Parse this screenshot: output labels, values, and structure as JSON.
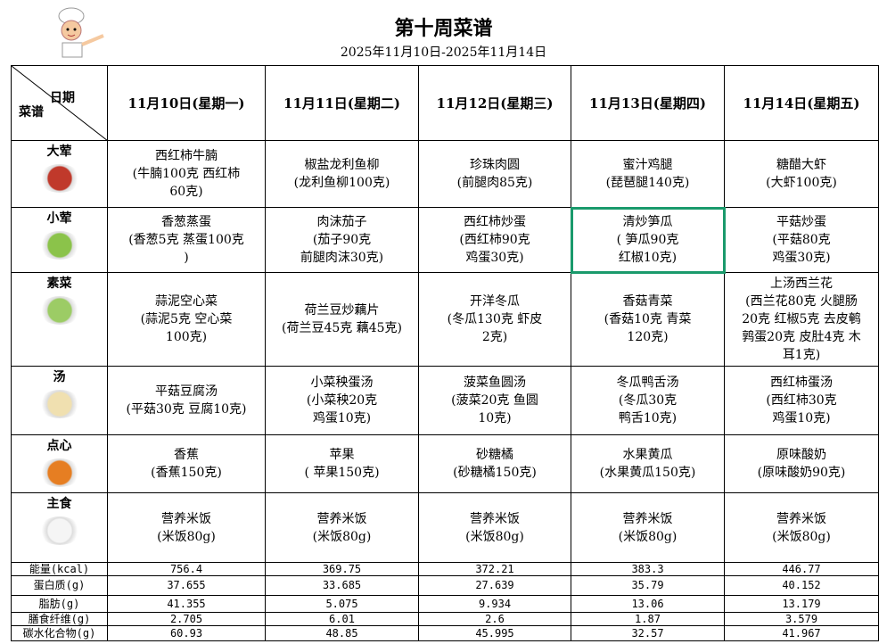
{
  "title": "第十周菜谱",
  "subtitle": "2025年11月10日-2025年11月14日",
  "header": {
    "date_label": "日期",
    "menu_label": "菜谱",
    "days": [
      "11月10日(星期一)",
      "11月11日(星期二)",
      "11月12日(星期三)",
      "11月13日(星期四)",
      "11月14日(星期五)"
    ]
  },
  "rows": [
    {
      "category": "大荤",
      "icon": "braised-beef-icon",
      "cells": [
        "西红柿牛腩\n(牛腩100克 西红柿\n60克)",
        "椒盐龙利鱼柳\n(龙利鱼柳100克)",
        "珍珠肉圆\n(前腿肉85克)",
        "蜜汁鸡腿\n(琵琶腿140克)",
        "糖醋大虾\n(大虾100克)"
      ]
    },
    {
      "category": "小荤",
      "icon": "stir-fry-icon",
      "cells": [
        "香葱蒸蛋\n(香葱5克 蒸蛋100克\n)",
        "肉沫茄子\n(茄子90克\n前腿肉沫30克)",
        "西红柿炒蛋\n(西红柿90克\n鸡蛋30克)",
        "清炒笋瓜\n( 笋瓜90克\n红椒10克)",
        "平菇炒蛋\n(平菇80克\n鸡蛋30克)"
      ]
    },
    {
      "category": "素菜",
      "icon": "asparagus-icon",
      "cells": [
        "蒜泥空心菜\n(蒜泥5克 空心菜\n100克)",
        "荷兰豆炒藕片\n(荷兰豆45克 藕45克)",
        "开洋冬瓜\n(冬瓜130克 虾皮\n2克)",
        "香菇青菜\n(香菇10克 青菜\n120克)",
        "上汤西兰花\n(西兰花80克 火腿肠\n20克 红椒5克 去皮鹌\n鹑蛋20克 皮肚4克 木\n耳1克)"
      ]
    },
    {
      "category": "汤",
      "icon": "soup-icon",
      "cells": [
        "平菇豆腐汤\n(平菇30克 豆腐10克)",
        "小菜秧蛋汤\n(小菜秧20克\n鸡蛋10克)",
        "菠菜鱼圆汤\n(菠菜20克 鱼圆\n10克)",
        "冬瓜鸭舌汤\n(冬瓜30克\n鸭舌10克)",
        "西红柿蛋汤\n(西红柿30克\n鸡蛋10克)"
      ]
    },
    {
      "category": "点心",
      "icon": "dessert-icon",
      "cells": [
        "香蕉\n(香蕉150克)",
        "苹果\n( 苹果150克)",
        "砂糖橘\n(砂糖橘150克)",
        "水果黄瓜\n(水果黄瓜150克)",
        "原味酸奶\n(原味酸奶90克)"
      ]
    },
    {
      "category": "主食",
      "icon": "rice-bowl-icon",
      "cells": [
        "营养米饭\n(米饭80g)",
        "营养米饭\n(米饭80g)",
        "营养米饭\n(米饭80g)",
        "营养米饭\n(米饭80g)",
        "营养米饭\n(米饭80g)"
      ]
    }
  ],
  "nutrition": [
    {
      "label": "能量(kcal)",
      "values": [
        "756.4",
        "369.75",
        "372.21",
        "383.3",
        "446.77"
      ]
    },
    {
      "label": "蛋白质(g)",
      "values": [
        "37.655",
        "33.685",
        "27.639",
        "35.79",
        "40.152"
      ]
    },
    {
      "label": "脂肪(g)",
      "values": [
        "41.355",
        "5.075",
        "9.934",
        "13.06",
        "13.179"
      ]
    },
    {
      "label": "膳食纤维(g)",
      "values": [
        "2.705",
        "6.01",
        "2.6",
        "1.87",
        "3.579"
      ]
    },
    {
      "label": "碳水化合物(g)",
      "values": [
        "60.93",
        "48.85",
        "45.995",
        "32.57",
        "41.967"
      ]
    }
  ],
  "selected_cell": {
    "row": 1,
    "col": 3
  },
  "colors": {
    "background": "#f2ead3",
    "selection": "#1a9a6c"
  }
}
